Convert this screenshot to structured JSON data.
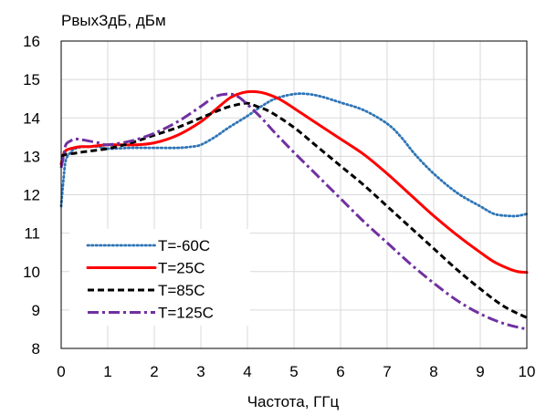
{
  "chart_data": {
    "type": "line",
    "title": "",
    "ylabel": "PвыхЗдБ, дБм",
    "xlabel": "Частота, ГГц",
    "xlim": [
      0,
      10
    ],
    "ylim": [
      8,
      16
    ],
    "xticks": [
      0,
      1,
      2,
      3,
      4,
      5,
      6,
      7,
      8,
      9,
      10
    ],
    "yticks": [
      8,
      9,
      10,
      11,
      12,
      13,
      14,
      15,
      16
    ],
    "grid": true,
    "legend_position": "bottom-left",
    "series": [
      {
        "name": "T=-60C",
        "color": "#2E75B6",
        "dash": "dotted",
        "x": [
          0,
          0.05,
          0.1,
          0.2,
          0.3,
          0.5,
          0.8,
          1.0,
          1.5,
          2.0,
          2.5,
          2.8,
          3.0,
          3.3,
          3.6,
          4.0,
          4.3,
          4.6,
          5.0,
          5.3,
          5.6,
          6.0,
          6.5,
          7.0,
          7.3,
          7.6,
          8.0,
          8.5,
          9.0,
          9.3,
          9.6,
          9.8,
          10.0
        ],
        "y": [
          11.7,
          12.4,
          12.9,
          13.1,
          13.2,
          13.25,
          13.25,
          13.2,
          13.22,
          13.22,
          13.22,
          13.25,
          13.3,
          13.5,
          13.75,
          14.05,
          14.3,
          14.5,
          14.62,
          14.62,
          14.55,
          14.4,
          14.2,
          13.85,
          13.5,
          13.05,
          12.55,
          12.05,
          11.7,
          11.5,
          11.45,
          11.45,
          11.5
        ]
      },
      {
        "name": "T=25C",
        "color": "#FF0000",
        "dash": "solid",
        "x": [
          0,
          0.05,
          0.1,
          0.2,
          0.4,
          0.6,
          0.8,
          1.0,
          1.3,
          1.6,
          2.0,
          2.5,
          3.0,
          3.3,
          3.6,
          3.8,
          4.0,
          4.2,
          4.4,
          4.7,
          5.0,
          5.5,
          6.0,
          6.5,
          7.0,
          7.5,
          8.0,
          8.5,
          9.0,
          9.3,
          9.6,
          9.8,
          10.0
        ],
        "y": [
          12.8,
          13.05,
          13.15,
          13.2,
          13.25,
          13.25,
          13.28,
          13.3,
          13.3,
          13.3,
          13.35,
          13.55,
          13.9,
          14.2,
          14.5,
          14.62,
          14.68,
          14.68,
          14.63,
          14.48,
          14.25,
          13.85,
          13.45,
          13.05,
          12.55,
          12.0,
          11.45,
          10.95,
          10.5,
          10.25,
          10.08,
          10.0,
          9.98
        ]
      },
      {
        "name": "T=85C",
        "color": "#000000",
        "dash": "dashed",
        "x": [
          0,
          0.1,
          0.3,
          0.5,
          1.0,
          1.5,
          2.0,
          2.5,
          3.0,
          3.5,
          3.8,
          4.0,
          4.2,
          4.5,
          5.0,
          5.5,
          6.0,
          6.5,
          7.0,
          7.5,
          8.0,
          8.5,
          9.0,
          9.5,
          10.0
        ],
        "y": [
          13.0,
          13.05,
          13.08,
          13.12,
          13.2,
          13.35,
          13.55,
          13.75,
          14.0,
          14.25,
          14.35,
          14.38,
          14.3,
          14.15,
          13.75,
          13.25,
          12.75,
          12.25,
          11.7,
          11.15,
          10.6,
          10.05,
          9.55,
          9.1,
          8.8
        ]
      },
      {
        "name": "T=125C",
        "color": "#7030A0",
        "dash": "dashdot",
        "x": [
          0,
          0.05,
          0.1,
          0.2,
          0.3,
          0.5,
          0.8,
          1.0,
          1.5,
          2.0,
          2.5,
          3.0,
          3.3,
          3.6,
          3.8,
          4.0,
          4.3,
          4.6,
          5.0,
          5.5,
          6.0,
          6.5,
          7.0,
          7.5,
          8.0,
          8.5,
          9.0,
          9.5,
          10.0
        ],
        "y": [
          12.7,
          13.0,
          13.3,
          13.4,
          13.45,
          13.42,
          13.35,
          13.3,
          13.4,
          13.6,
          13.9,
          14.3,
          14.55,
          14.62,
          14.55,
          14.35,
          14.0,
          13.6,
          13.1,
          12.5,
          11.9,
          11.3,
          10.75,
          10.2,
          9.7,
          9.25,
          8.9,
          8.65,
          8.5
        ]
      }
    ]
  }
}
